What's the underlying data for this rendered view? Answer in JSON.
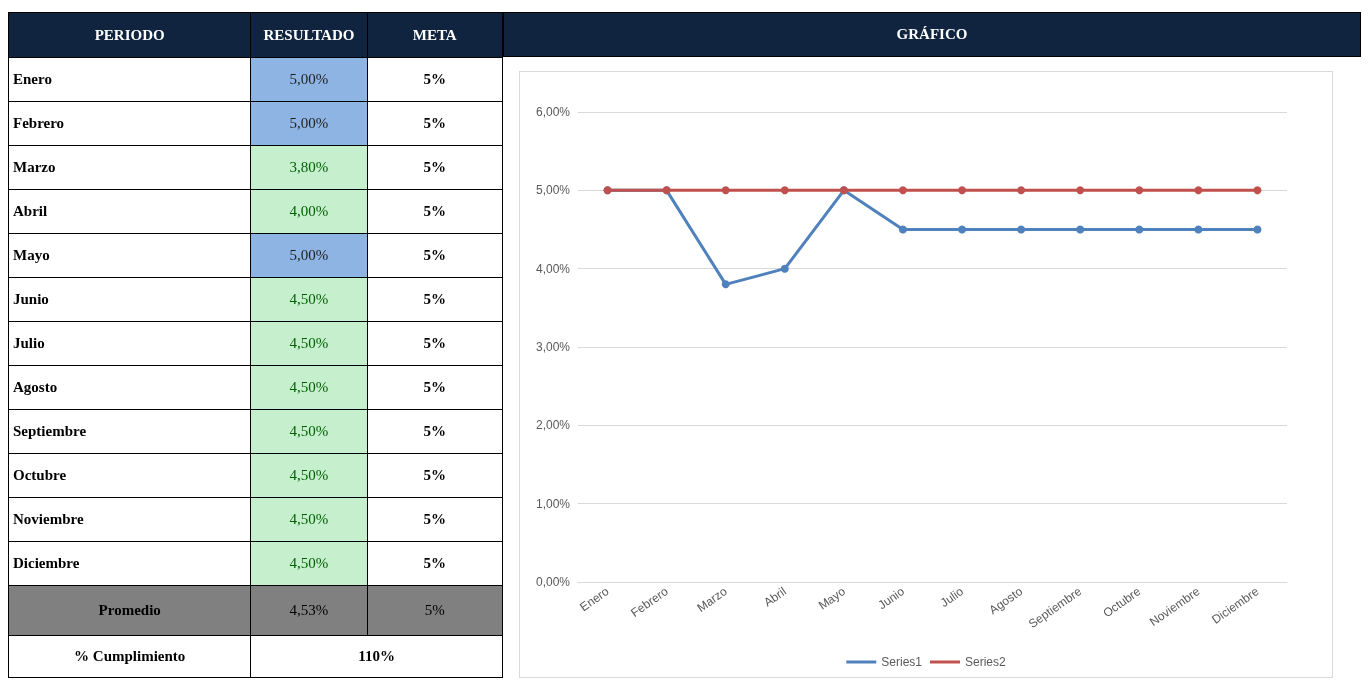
{
  "chart_data": [
    {
      "type": "other",
      "annotations": [
        "PERIODO",
        "RESULTADO",
        "META",
        "Enero",
        "5,00%",
        "5%",
        "Febrero",
        "5,00%",
        "5%",
        "Marzo",
        "3,80%",
        "5%",
        "Abril",
        "4,00%",
        "5%",
        "Mayo",
        "5,00%",
        "5%",
        "Junio",
        "4,50%",
        "5%",
        "Julio",
        "4,50%",
        "5%",
        "Agosto",
        "4,50%",
        "5%",
        "Septiembre",
        "4,50%",
        "5%",
        "Octubre",
        "4,50%",
        "5%",
        "Noviembre",
        "4,50%",
        "5%",
        "Diciembre",
        "4,50%",
        "5%",
        "Promedio",
        "4,53%",
        "5%",
        "% Cumplimiento",
        "110%"
      ]
    },
    {
      "type": "line",
      "title": "GRÁFICO",
      "categories": [
        "Enero",
        "Febrero",
        "Marzo",
        "Abril",
        "Mayo",
        "Junio",
        "Julio",
        "Agosto",
        "Septiembre",
        "Octubre",
        "Noviembre",
        "Diciembre"
      ],
      "series": [
        {
          "name": "Series1",
          "color": "#4f81bd",
          "values": [
            5,
            5,
            3.8,
            4,
            5,
            4.5,
            4.5,
            4.5,
            4.5,
            4.5,
            4.5,
            4.5
          ]
        },
        {
          "name": "Series2",
          "color": "#c0504d",
          "values": [
            5,
            5,
            5,
            5,
            5,
            5,
            5,
            5,
            5,
            5,
            5,
            5
          ]
        }
      ],
      "ylim": [
        0,
        6
      ],
      "yticks": [
        {
          "value": 0,
          "label": "0,00%"
        },
        {
          "value": 1,
          "label": "1,00%"
        },
        {
          "value": 2,
          "label": "2,00%"
        },
        {
          "value": 3,
          "label": "3,00%"
        },
        {
          "value": 4,
          "label": "4,00%"
        },
        {
          "value": 5,
          "label": "5,00%"
        },
        {
          "value": 6,
          "label": "6,00%"
        }
      ],
      "grid": "y",
      "legend": "bottom",
      "marker": "circle",
      "line_style": "solid"
    }
  ]
}
